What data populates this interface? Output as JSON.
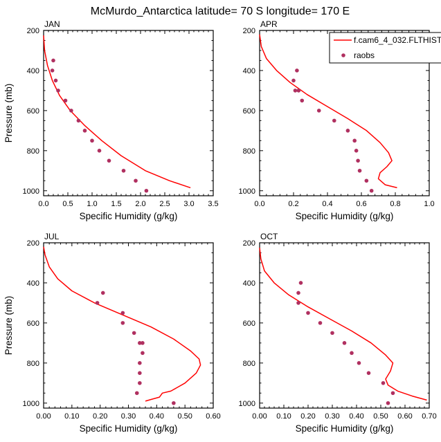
{
  "title": "McMurdo_Antarctica  latitude= 70 S longitude= 170 E",
  "legend": {
    "placement": "top-right",
    "model_label": "f.cam6_4_032.FLTHIST",
    "obs_label": "raobs",
    "model_color": "#ff0000",
    "obs_color": "#b03060"
  },
  "chart_data": [
    {
      "type": "line",
      "panel_label": "JAN",
      "xlabel": "Specific Humidity (g/kg)",
      "ylabel": "Pressure (mb)",
      "xlim": [
        0,
        3.5
      ],
      "ylim": [
        200,
        1025
      ],
      "y_inverted": true,
      "xticks": [
        "0.0",
        "0.5",
        "1.0",
        "1.5",
        "2.0",
        "2.5",
        "3.0",
        "3.5"
      ],
      "yticks": [
        "200",
        "400",
        "600",
        "800",
        "1000"
      ],
      "series": [
        {
          "kind": "line",
          "x": [
            0.0,
            0.02,
            0.08,
            0.18,
            0.33,
            0.55,
            0.85,
            1.2,
            1.6,
            2.1,
            2.6,
            3.03
          ],
          "y": [
            225,
            300,
            375,
            450,
            525,
            600,
            675,
            750,
            825,
            900,
            950,
            985
          ]
        },
        {
          "kind": "scatter",
          "x": [
            0.2,
            0.18,
            0.25,
            0.3,
            0.45,
            0.57,
            0.72,
            0.85,
            1.0,
            1.15,
            1.35,
            1.65,
            1.9,
            2.12
          ],
          "y": [
            350,
            400,
            450,
            500,
            550,
            600,
            650,
            700,
            750,
            800,
            850,
            900,
            950,
            1000
          ]
        }
      ]
    },
    {
      "type": "line",
      "panel_label": "APR",
      "xlabel": "Specific Humidity (g/kg)",
      "ylabel": "",
      "xlim": [
        0,
        1.0
      ],
      "ylim": [
        200,
        1025
      ],
      "y_inverted": true,
      "xticks": [
        "0.0",
        "0.2",
        "0.4",
        "0.6",
        "0.8",
        "1.0"
      ],
      "yticks": [
        "200",
        "400",
        "600",
        "800",
        "1000"
      ],
      "series": [
        {
          "kind": "line",
          "x": [
            0.0,
            0.01,
            0.04,
            0.1,
            0.18,
            0.28,
            0.4,
            0.52,
            0.63,
            0.71,
            0.76,
            0.78,
            0.75,
            0.71,
            0.7,
            0.74,
            0.81
          ],
          "y": [
            220,
            280,
            340,
            400,
            460,
            520,
            580,
            640,
            700,
            760,
            810,
            850,
            880,
            910,
            940,
            970,
            985
          ]
        },
        {
          "kind": "scatter",
          "x": [
            0.22,
            0.2,
            0.21,
            0.23,
            0.25,
            0.35,
            0.44,
            0.52,
            0.56,
            0.57,
            0.58,
            0.59,
            0.63,
            0.66
          ],
          "y": [
            400,
            450,
            500,
            500,
            550,
            600,
            650,
            700,
            750,
            800,
            850,
            900,
            950,
            1000
          ]
        }
      ]
    },
    {
      "type": "line",
      "panel_label": "JUL",
      "xlabel": "Specific Humidity (g/kg)",
      "ylabel": "Pressure (mb)",
      "xlim": [
        0,
        0.6
      ],
      "ylim": [
        200,
        1025
      ],
      "y_inverted": true,
      "xticks": [
        "0.00",
        "0.10",
        "0.20",
        "0.30",
        "0.40",
        "0.50",
        "0.60"
      ],
      "yticks": [
        "200",
        "400",
        "600",
        "800",
        "1000"
      ],
      "series": [
        {
          "kind": "line",
          "x": [
            0.0,
            0.005,
            0.02,
            0.05,
            0.1,
            0.18,
            0.28,
            0.38,
            0.46,
            0.52,
            0.55,
            0.555,
            0.54,
            0.5,
            0.45,
            0.42,
            0.41,
            0.38,
            0.36
          ],
          "y": [
            220,
            260,
            320,
            380,
            440,
            500,
            560,
            620,
            680,
            740,
            780,
            810,
            850,
            900,
            940,
            950,
            970,
            982,
            990
          ]
        },
        {
          "kind": "scatter",
          "x": [
            0.21,
            0.19,
            0.28,
            0.28,
            0.32,
            0.34,
            0.35,
            0.35,
            0.34,
            0.34,
            0.34,
            0.33,
            0.46
          ],
          "y": [
            450,
            500,
            550,
            600,
            650,
            700,
            700,
            750,
            800,
            850,
            900,
            950,
            1000
          ]
        }
      ]
    },
    {
      "type": "line",
      "panel_label": "OCT",
      "xlabel": "Specific Humidity (g/kg)",
      "ylabel": "",
      "xlim": [
        0,
        0.7
      ],
      "ylim": [
        200,
        1025
      ],
      "y_inverted": true,
      "xticks": [
        "0.00",
        "0.10",
        "0.20",
        "0.30",
        "0.40",
        "0.50",
        "0.60",
        "0.70"
      ],
      "yticks": [
        "200",
        "400",
        "600",
        "800",
        "1000"
      ],
      "series": [
        {
          "kind": "line",
          "x": [
            0.0,
            0.005,
            0.02,
            0.06,
            0.12,
            0.2,
            0.29,
            0.38,
            0.46,
            0.52,
            0.55,
            0.54,
            0.52,
            0.53,
            0.57,
            0.63,
            0.69
          ],
          "y": [
            225,
            280,
            340,
            400,
            460,
            520,
            580,
            640,
            700,
            760,
            800,
            840,
            880,
            910,
            940,
            965,
            985
          ]
        },
        {
          "kind": "scatter",
          "x": [
            0.17,
            0.16,
            0.16,
            0.2,
            0.25,
            0.3,
            0.35,
            0.38,
            0.41,
            0.45,
            0.51,
            0.55,
            0.53
          ],
          "y": [
            400,
            450,
            500,
            550,
            600,
            650,
            700,
            750,
            800,
            850,
            900,
            950,
            1000
          ]
        }
      ]
    }
  ]
}
